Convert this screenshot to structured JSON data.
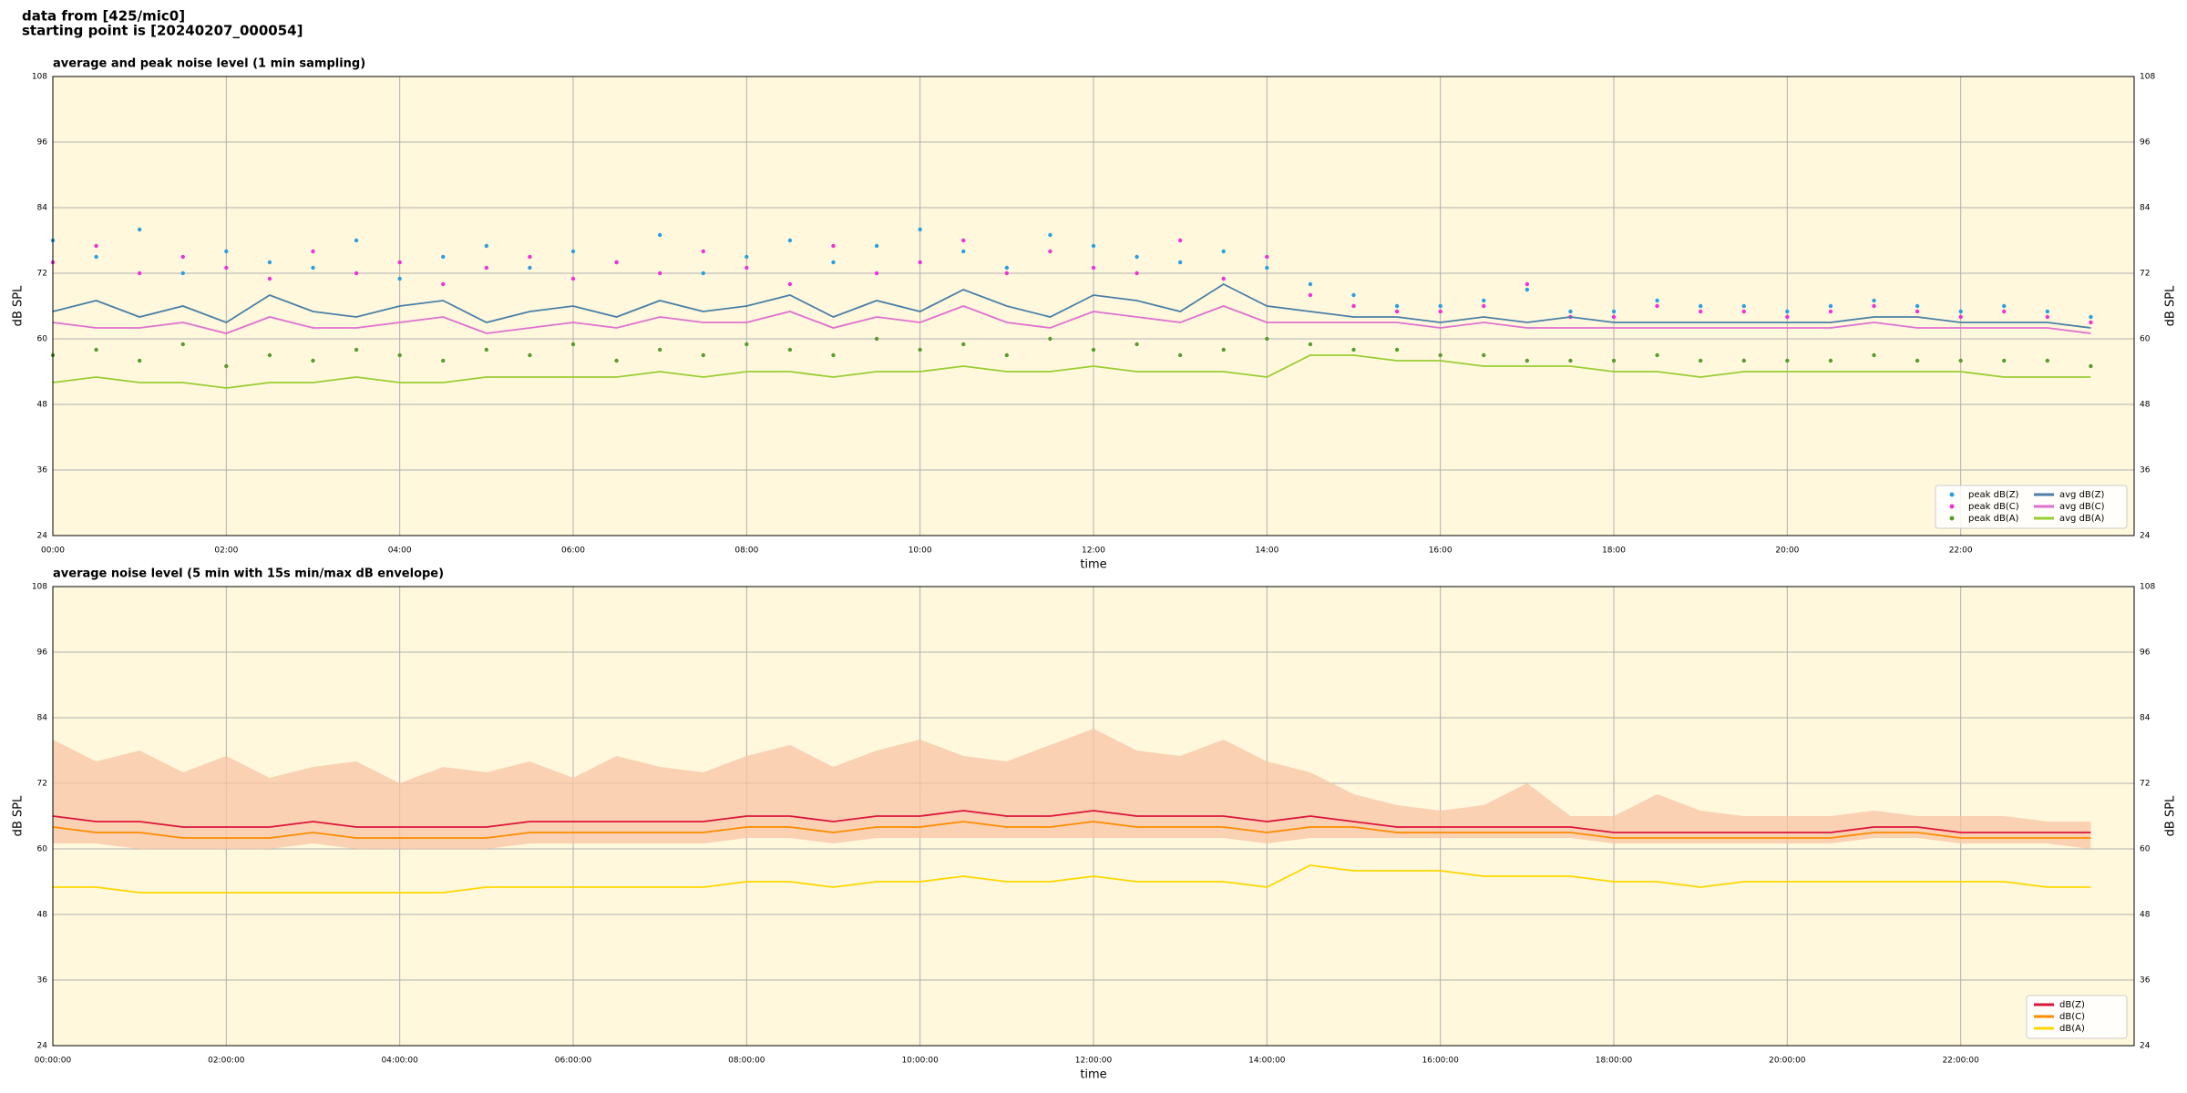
{
  "header": {
    "lines": [
      "data from [425/mic0]",
      "starting point is [20240207_000054]"
    ]
  },
  "chart_data": [
    {
      "type": "line",
      "title": "average and peak noise level (1 min sampling)",
      "xlabel": "time",
      "ylabel": "dB SPL",
      "x": [
        0,
        0.5,
        1,
        1.5,
        2,
        2.5,
        3,
        3.5,
        4,
        4.5,
        5,
        5.5,
        6,
        6.5,
        7,
        7.5,
        8,
        8.5,
        9,
        9.5,
        10,
        10.5,
        11,
        11.5,
        12,
        12.5,
        13,
        13.5,
        14,
        14.5,
        15,
        15.5,
        16,
        16.5,
        17,
        17.5,
        18,
        18.5,
        19,
        19.5,
        20,
        20.5,
        21,
        21.5,
        22,
        22.5,
        23,
        23.5
      ],
      "xlim": [
        0,
        24
      ],
      "xticks": [
        {
          "value": 0,
          "label": "00:00"
        },
        {
          "value": 2,
          "label": "02:00"
        },
        {
          "value": 4,
          "label": "04:00"
        },
        {
          "value": 6,
          "label": "06:00"
        },
        {
          "value": 8,
          "label": "08:00"
        },
        {
          "value": 10,
          "label": "10:00"
        },
        {
          "value": 12,
          "label": "12:00"
        },
        {
          "value": 14,
          "label": "14:00"
        },
        {
          "value": 16,
          "label": "16:00"
        },
        {
          "value": 18,
          "label": "18:00"
        },
        {
          "value": 20,
          "label": "20:00"
        },
        {
          "value": 22,
          "label": "22:00"
        }
      ],
      "ylim": [
        24,
        108
      ],
      "yticks": [
        24,
        36,
        48,
        60,
        72,
        84,
        96,
        108
      ],
      "grid": true,
      "legend": "lower right",
      "legend_columns": 2,
      "series": [
        {
          "name": "peak dB(Z)",
          "style": "markers",
          "color": "#2a9fe0",
          "values": [
            78,
            75,
            80,
            72,
            76,
            74,
            73,
            78,
            71,
            75,
            77,
            73,
            76,
            74,
            79,
            72,
            75,
            78,
            74,
            77,
            80,
            76,
            73,
            79,
            77,
            75,
            74,
            76,
            73,
            70,
            68,
            66,
            66,
            67,
            69,
            65,
            65,
            67,
            66,
            66,
            65,
            66,
            67,
            66,
            65,
            66,
            65,
            64
          ]
        },
        {
          "name": "peak dB(C)",
          "style": "markers",
          "color": "#f030d8",
          "values": [
            74,
            77,
            72,
            75,
            73,
            71,
            76,
            72,
            74,
            70,
            73,
            75,
            71,
            74,
            72,
            76,
            73,
            70,
            77,
            72,
            74,
            78,
            72,
            76,
            73,
            72,
            78,
            71,
            75,
            68,
            66,
            65,
            65,
            66,
            70,
            64,
            64,
            66,
            65,
            65,
            64,
            65,
            66,
            65,
            64,
            65,
            64,
            63
          ]
        },
        {
          "name": "peak dB(A)",
          "style": "markers",
          "color": "#5a9a30",
          "values": [
            57,
            58,
            56,
            59,
            55,
            57,
            56,
            58,
            57,
            56,
            58,
            57,
            59,
            56,
            58,
            57,
            59,
            58,
            57,
            60,
            58,
            59,
            57,
            60,
            58,
            59,
            57,
            58,
            60,
            59,
            58,
            58,
            57,
            57,
            56,
            56,
            56,
            57,
            56,
            56,
            56,
            56,
            57,
            56,
            56,
            56,
            56,
            55
          ]
        },
        {
          "name": "avg dB(Z)",
          "style": "line",
          "color": "#4a7fa8",
          "values": [
            65,
            67,
            64,
            66,
            63,
            68,
            65,
            64,
            66,
            67,
            63,
            65,
            66,
            64,
            67,
            65,
            66,
            68,
            64,
            67,
            65,
            69,
            66,
            64,
            68,
            67,
            65,
            70,
            66,
            65,
            64,
            64,
            63,
            64,
            63,
            64,
            63,
            63,
            63,
            63,
            63,
            63,
            64,
            64,
            63,
            63,
            63,
            62
          ]
        },
        {
          "name": "avg dB(C)",
          "style": "line",
          "color": "#e070d0",
          "values": [
            63,
            62,
            62,
            63,
            61,
            64,
            62,
            62,
            63,
            64,
            61,
            62,
            63,
            62,
            64,
            63,
            63,
            65,
            62,
            64,
            63,
            66,
            63,
            62,
            65,
            64,
            63,
            66,
            63,
            63,
            63,
            63,
            62,
            63,
            62,
            62,
            62,
            62,
            62,
            62,
            62,
            62,
            63,
            62,
            62,
            62,
            62,
            61
          ]
        },
        {
          "name": "avg dB(A)",
          "style": "line",
          "color": "#9acd32",
          "values": [
            52,
            53,
            52,
            52,
            51,
            52,
            52,
            53,
            52,
            52,
            53,
            53,
            53,
            53,
            54,
            53,
            54,
            54,
            53,
            54,
            54,
            55,
            54,
            54,
            55,
            54,
            54,
            54,
            53,
            57,
            57,
            56,
            56,
            55,
            55,
            55,
            54,
            54,
            53,
            54,
            54,
            54,
            54,
            54,
            54,
            53,
            53,
            53
          ]
        }
      ]
    },
    {
      "type": "line",
      "title": "average noise level (5 min with 15s min/max dB envelope)",
      "xlabel": "time",
      "ylabel": "dB SPL",
      "x": [
        0,
        0.5,
        1,
        1.5,
        2,
        2.5,
        3,
        3.5,
        4,
        4.5,
        5,
        5.5,
        6,
        6.5,
        7,
        7.5,
        8,
        8.5,
        9,
        9.5,
        10,
        10.5,
        11,
        11.5,
        12,
        12.5,
        13,
        13.5,
        14,
        14.5,
        15,
        15.5,
        16,
        16.5,
        17,
        17.5,
        18,
        18.5,
        19,
        19.5,
        20,
        20.5,
        21,
        21.5,
        22,
        22.5,
        23,
        23.5
      ],
      "xlim": [
        0,
        24
      ],
      "xticks": [
        {
          "value": 0,
          "label": "00:00:00"
        },
        {
          "value": 2,
          "label": "02:00:00"
        },
        {
          "value": 4,
          "label": "04:00:00"
        },
        {
          "value": 6,
          "label": "06:00:00"
        },
        {
          "value": 8,
          "label": "08:00:00"
        },
        {
          "value": 10,
          "label": "10:00:00"
        },
        {
          "value": 12,
          "label": "12:00:00"
        },
        {
          "value": 14,
          "label": "14:00:00"
        },
        {
          "value": 16,
          "label": "16:00:00"
        },
        {
          "value": 18,
          "label": "18:00:00"
        },
        {
          "value": 20,
          "label": "20:00:00"
        },
        {
          "value": 22,
          "label": "22:00:00"
        }
      ],
      "ylim": [
        24,
        108
      ],
      "yticks": [
        24,
        36,
        48,
        60,
        72,
        84,
        96,
        108
      ],
      "grid": true,
      "legend": "lower right",
      "legend_columns": 1,
      "envelope": {
        "color": "#f8c4a4",
        "high": [
          80,
          76,
          78,
          74,
          77,
          73,
          75,
          76,
          72,
          75,
          74,
          76,
          73,
          77,
          75,
          74,
          77,
          79,
          75,
          78,
          80,
          77,
          76,
          79,
          82,
          78,
          77,
          80,
          76,
          74,
          70,
          68,
          67,
          68,
          72,
          66,
          66,
          70,
          67,
          66,
          66,
          66,
          67,
          66,
          66,
          66,
          65,
          65
        ],
        "low": [
          61,
          61,
          60,
          60,
          60,
          60,
          61,
          60,
          60,
          60,
          60,
          61,
          61,
          61,
          61,
          61,
          62,
          62,
          61,
          62,
          62,
          62,
          62,
          62,
          62,
          62,
          62,
          62,
          61,
          62,
          62,
          62,
          62,
          62,
          62,
          62,
          61,
          61,
          61,
          61,
          61,
          61,
          62,
          62,
          61,
          61,
          61,
          60
        ]
      },
      "series": [
        {
          "name": "dB(Z)",
          "style": "line",
          "color": "#dc143c",
          "values": [
            66,
            65,
            65,
            64,
            64,
            64,
            65,
            64,
            64,
            64,
            64,
            65,
            65,
            65,
            65,
            65,
            66,
            66,
            65,
            66,
            66,
            67,
            66,
            66,
            67,
            66,
            66,
            66,
            65,
            66,
            65,
            64,
            64,
            64,
            64,
            64,
            63,
            63,
            63,
            63,
            63,
            63,
            64,
            64,
            63,
            63,
            63,
            63
          ]
        },
        {
          "name": "dB(C)",
          "style": "line",
          "color": "#ff8c00",
          "values": [
            64,
            63,
            63,
            62,
            62,
            62,
            63,
            62,
            62,
            62,
            62,
            63,
            63,
            63,
            63,
            63,
            64,
            64,
            63,
            64,
            64,
            65,
            64,
            64,
            65,
            64,
            64,
            64,
            63,
            64,
            64,
            63,
            63,
            63,
            63,
            63,
            62,
            62,
            62,
            62,
            62,
            62,
            63,
            63,
            62,
            62,
            62,
            62
          ]
        },
        {
          "name": "dB(A)",
          "style": "line",
          "color": "#ffd700",
          "values": [
            53,
            53,
            52,
            52,
            52,
            52,
            52,
            52,
            52,
            52,
            53,
            53,
            53,
            53,
            53,
            53,
            54,
            54,
            53,
            54,
            54,
            55,
            54,
            54,
            55,
            54,
            54,
            54,
            53,
            57,
            56,
            56,
            56,
            55,
            55,
            55,
            54,
            54,
            53,
            54,
            54,
            54,
            54,
            54,
            54,
            54,
            53,
            53
          ]
        }
      ]
    }
  ]
}
